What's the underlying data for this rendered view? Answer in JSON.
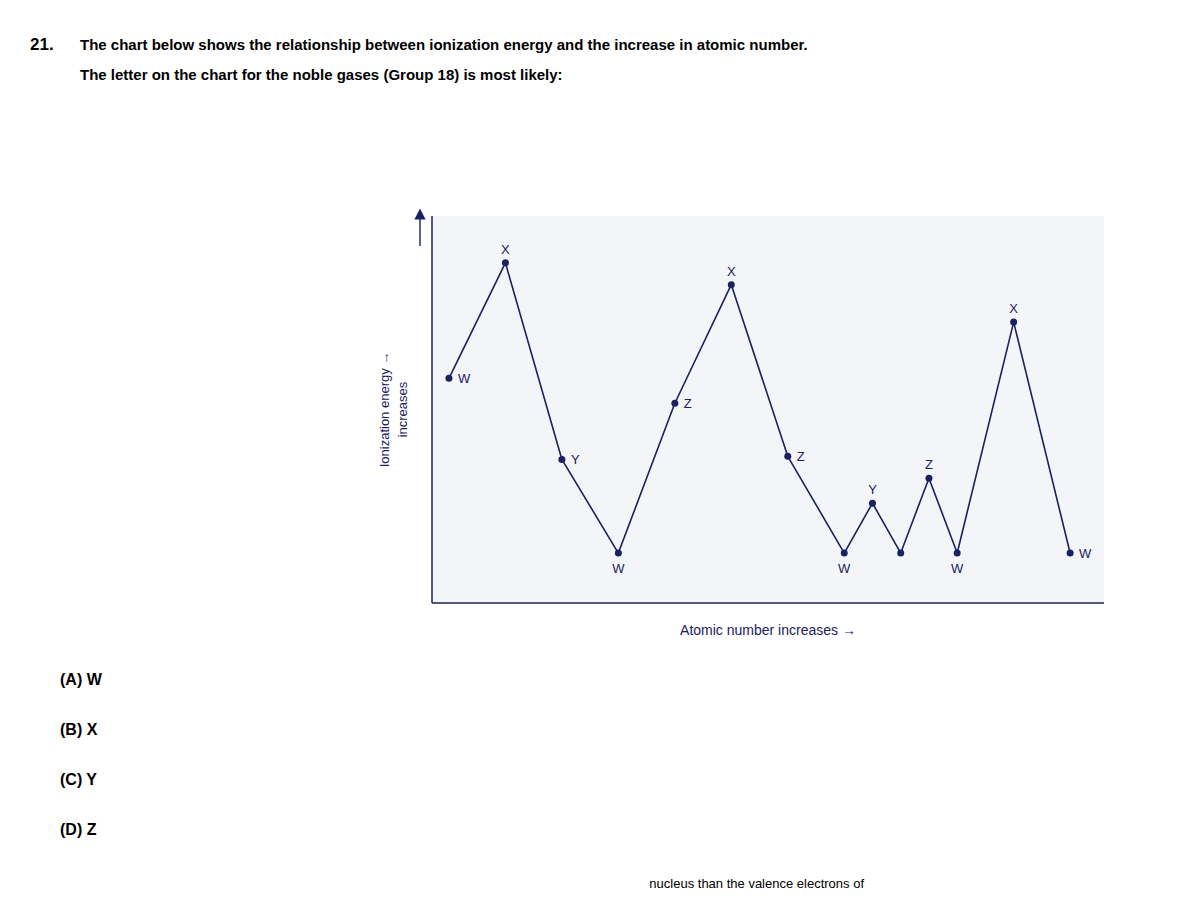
{
  "chart_data": {
    "type": "line",
    "title": "The chart below shows the relationship between ionization energy and the increase in atomic number.",
    "subtitle": "The letter on the chart for the noble gases (Group 18) is most likely:",
    "xlabel": "Atomic number increases  →",
    "ylabel": [
      "Ionization energy →",
      "increases"
    ],
    "annotations": [
      "21.",
      "(A) W",
      "(B) X",
      "(C) Y",
      "(D) Z",
      "nucleus than the valence electrons of"
    ],
    "x": [
      0,
      1,
      2,
      3,
      4,
      5,
      6,
      7,
      7.5,
      8,
      8.5,
      9,
      10,
      11
    ],
    "values": [
      0.6,
      0.97,
      0.34,
      0.04,
      0.52,
      0.9,
      0.35,
      0.04,
      0.2,
      0.04,
      0.28,
      0.04,
      0.78,
      0.04
    ],
    "point_labels": [
      "W",
      "X",
      "Y",
      "W",
      "Z",
      "X",
      "Z",
      "W",
      "Y",
      null,
      "Z",
      "W",
      "X",
      "W"
    ],
    "xlim": [
      -0.3,
      11.6
    ],
    "ylim": [
      -0.12,
      1.12
    ],
    "xticks": [],
    "yticks": [],
    "tick_labels": false,
    "grid": false,
    "color": "#1a2060",
    "marker": "circle"
  }
}
